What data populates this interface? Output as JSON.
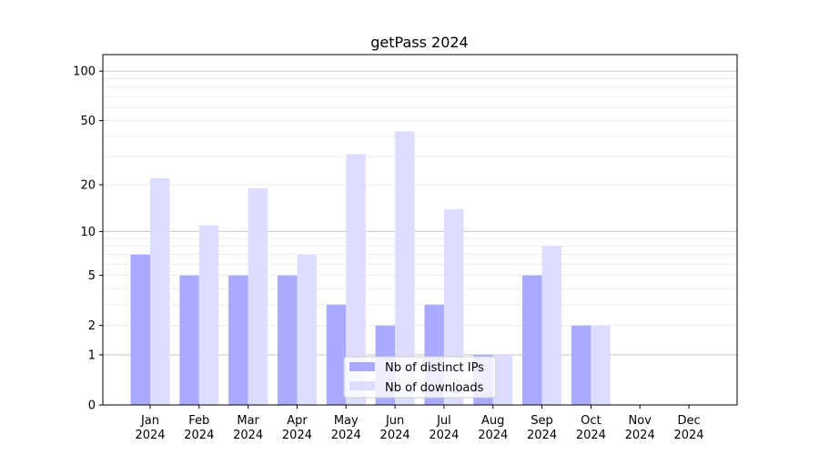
{
  "chart_data": {
    "type": "bar",
    "title": "getPass 2024",
    "xlabel": "",
    "ylabel": "",
    "yscale": "log(1+y)",
    "ylim": [
      0,
      126
    ],
    "yticks": [
      0,
      1,
      2,
      5,
      10,
      20,
      50,
      100
    ],
    "ytick_labels": [
      "0",
      "1",
      "2",
      "5",
      "10",
      "20",
      "50",
      "100"
    ],
    "grid": true,
    "legend_position": "lower center",
    "categories": [
      "Jan\n2024",
      "Feb\n2024",
      "Mar\n2024",
      "Apr\n2024",
      "May\n2024",
      "Jun\n2024",
      "Jul\n2024",
      "Aug\n2024",
      "Sep\n2024",
      "Oct\n2024",
      "Nov\n2024",
      "Dec\n2024"
    ],
    "series": [
      {
        "name": "Nb of distinct IPs",
        "color": "#aaaaff",
        "values": [
          7,
          5,
          5,
          5,
          3,
          2,
          3,
          1,
          5,
          2,
          0,
          0
        ]
      },
      {
        "name": "Nb of downloads",
        "color": "#ddddff",
        "values": [
          22,
          11,
          19,
          7,
          31,
          43,
          14,
          1,
          8,
          2,
          0,
          0
        ]
      }
    ]
  }
}
